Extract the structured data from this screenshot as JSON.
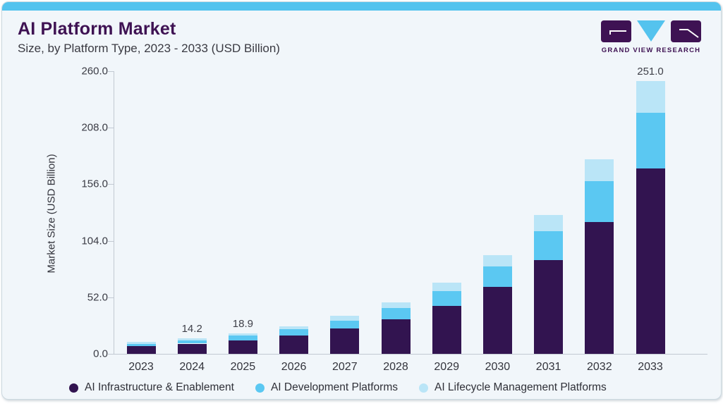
{
  "header": {
    "title": "AI Platform Market",
    "subtitle": "Size, by Platform Type, 2023 - 2033 (USD Billion)",
    "logo_text": "GRAND VIEW RESEARCH"
  },
  "colors": {
    "accent_strip": "#54c3ee",
    "title_purple": "#3e1253",
    "card_background": "#f1f6fa",
    "axis_gray": "#c2c9d2"
  },
  "chart_data": {
    "type": "bar",
    "stacked": true,
    "title": "AI Platform Market",
    "subtitle": "Size, by Platform Type, 2023 - 2033 (USD Billion)",
    "xlabel": "",
    "ylabel": "Market Size (USD Billion)",
    "ylim": [
      0,
      260
    ],
    "yticks": [
      0.0,
      52.0,
      104.0,
      156.0,
      208.0,
      260.0
    ],
    "grid": false,
    "legend_position": "bottom",
    "categories": [
      "2023",
      "2024",
      "2025",
      "2026",
      "2027",
      "2028",
      "2029",
      "2030",
      "2031",
      "2032",
      "2033"
    ],
    "series": [
      {
        "name": "AI Infrastructure & Enablement",
        "color": "#321450",
        "values": [
          7.0,
          9.4,
          12.5,
          17.0,
          23.2,
          31.9,
          44.0,
          61.5,
          86.4,
          121.5,
          170.6
        ]
      },
      {
        "name": "AI Development Platforms",
        "color": "#5bc8f2",
        "values": [
          2.3,
          3.1,
          4.1,
          5.5,
          7.4,
          10.1,
          13.7,
          18.9,
          26.5,
          37.1,
          51.1
        ]
      },
      {
        "name": "AI Lifecycle Management Platforms",
        "color": "#bae5f7",
        "values": [
          1.4,
          1.7,
          2.3,
          3.1,
          4.2,
          5.5,
          7.6,
          10.6,
          14.7,
          20.6,
          29.3
        ]
      }
    ],
    "totals": [
      10.7,
      14.2,
      18.9,
      25.6,
      34.8,
      47.5,
      65.3,
      91.0,
      127.6,
      179.2,
      251.0
    ],
    "shown_total_labels": {
      "2024": "14.2",
      "2025": "18.9",
      "2033": "251.0"
    }
  }
}
